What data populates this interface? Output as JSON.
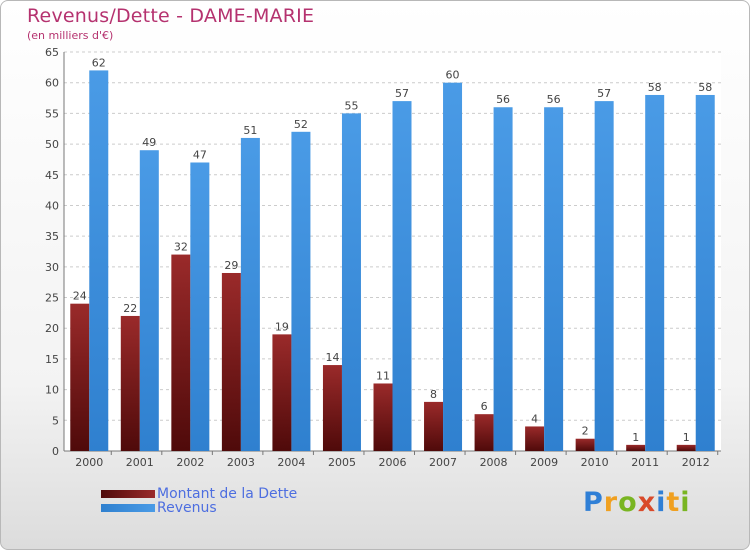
{
  "title": "Revenus/Dette - DAME-MARIE",
  "subtitle": "(en milliers d'€)",
  "logo": {
    "letters": [
      "P",
      "r",
      "o",
      "x",
      "i",
      "t",
      "i"
    ],
    "colors": [
      "#2f7fd6",
      "#f0a020",
      "#79b522",
      "#d94a2a",
      "#2f7fd6",
      "#f0a020",
      "#79b522"
    ]
  },
  "chart_data": {
    "type": "bar",
    "title": "Revenus/Dette - DAME-MARIE",
    "ylabel": "(en milliers d'€)",
    "xlabel": "",
    "categories": [
      "2000",
      "2001",
      "2002",
      "2003",
      "2004",
      "2005",
      "2006",
      "2007",
      "2008",
      "2009",
      "2010",
      "2011",
      "2012"
    ],
    "series": [
      {
        "name": "Montant de la Dette",
        "color": "#7a1c1c",
        "values": [
          24,
          22,
          32,
          29,
          19,
          14,
          11,
          8,
          6,
          4,
          2,
          1,
          1
        ]
      },
      {
        "name": "Revenus",
        "color": "#3d8fdc",
        "values": [
          62,
          49,
          47,
          51,
          52,
          55,
          57,
          60,
          56,
          56,
          57,
          58,
          58
        ]
      }
    ],
    "ylim": [
      0,
      65
    ],
    "yticks": [
      0,
      5,
      10,
      15,
      20,
      25,
      30,
      35,
      40,
      45,
      50,
      55,
      60,
      65
    ],
    "grid": true,
    "legend": "bottom-left"
  }
}
